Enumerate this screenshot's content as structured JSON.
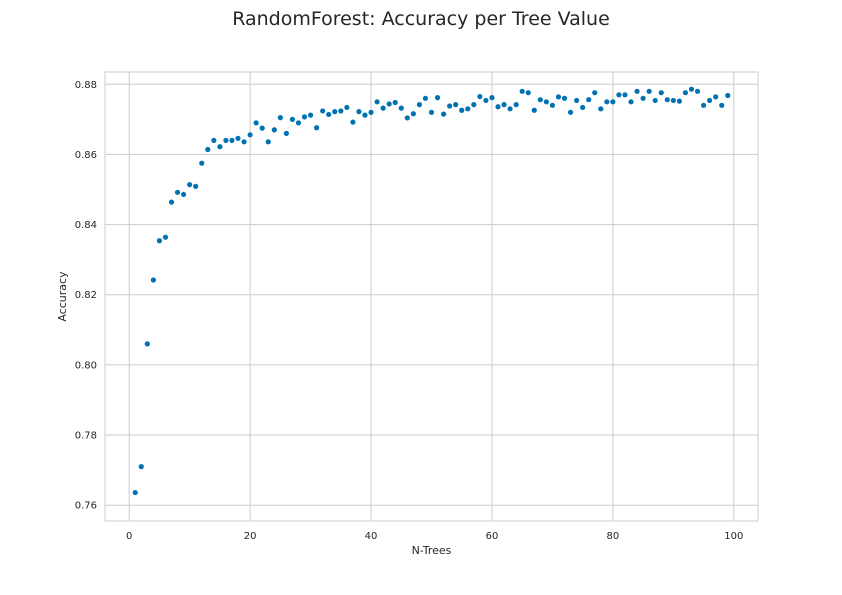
{
  "chart_data": {
    "type": "scatter",
    "title": "RandomForest: Accuracy per Tree Value",
    "xlabel": "N-Trees",
    "ylabel": "Accuracy",
    "xlim": [
      -4,
      104
    ],
    "ylim": [
      0.7555,
      0.8835
    ],
    "xticks": [
      0,
      20,
      40,
      60,
      80,
      100
    ],
    "yticks": [
      0.76,
      0.78,
      0.8,
      0.82,
      0.84,
      0.86,
      0.88
    ],
    "grid": true,
    "legend": "none",
    "marker_color": "#0072b2",
    "grid_color": "#cccccc",
    "x": [
      1,
      2,
      3,
      4,
      5,
      6,
      7,
      8,
      9,
      10,
      11,
      12,
      13,
      14,
      15,
      16,
      17,
      18,
      19,
      20,
      21,
      22,
      23,
      24,
      25,
      26,
      27,
      28,
      29,
      30,
      31,
      32,
      33,
      34,
      35,
      36,
      37,
      38,
      39,
      40,
      41,
      42,
      43,
      44,
      45,
      46,
      47,
      48,
      49,
      50,
      51,
      52,
      53,
      54,
      55,
      56,
      57,
      58,
      59,
      60,
      61,
      62,
      63,
      64,
      65,
      66,
      67,
      68,
      69,
      70,
      71,
      72,
      73,
      74,
      75,
      76,
      77,
      78,
      79,
      80,
      81,
      82,
      83,
      84,
      85,
      86,
      87,
      88,
      89,
      90,
      91,
      92,
      93,
      94,
      95,
      96,
      97,
      98,
      99
    ],
    "y": [
      0.7636,
      0.771,
      0.806,
      0.8242,
      0.8354,
      0.8364,
      0.8464,
      0.8492,
      0.8486,
      0.8514,
      0.8509,
      0.8575,
      0.8614,
      0.864,
      0.8622,
      0.864,
      0.864,
      0.8646,
      0.8636,
      0.8656,
      0.869,
      0.8675,
      0.8636,
      0.867,
      0.8705,
      0.866,
      0.87,
      0.869,
      0.8707,
      0.8712,
      0.8676,
      0.8724,
      0.8714,
      0.8722,
      0.8724,
      0.8734,
      0.8692,
      0.8722,
      0.8712,
      0.872,
      0.875,
      0.8732,
      0.8744,
      0.8748,
      0.8732,
      0.8704,
      0.8716,
      0.8742,
      0.876,
      0.872,
      0.8762,
      0.8715,
      0.8738,
      0.8742,
      0.8726,
      0.873,
      0.8742,
      0.8765,
      0.8754,
      0.8762,
      0.8736,
      0.8742,
      0.873,
      0.8742,
      0.878,
      0.8776,
      0.8726,
      0.8756,
      0.875,
      0.874,
      0.8764,
      0.876,
      0.872,
      0.8754,
      0.8734,
      0.8756,
      0.8776,
      0.873,
      0.875,
      0.875,
      0.877,
      0.877,
      0.875,
      0.878,
      0.876,
      0.878,
      0.8754,
      0.8776,
      0.8756,
      0.8754,
      0.8752,
      0.8776,
      0.8786,
      0.878,
      0.874,
      0.8754,
      0.8764,
      0.874,
      0.8768
    ]
  }
}
